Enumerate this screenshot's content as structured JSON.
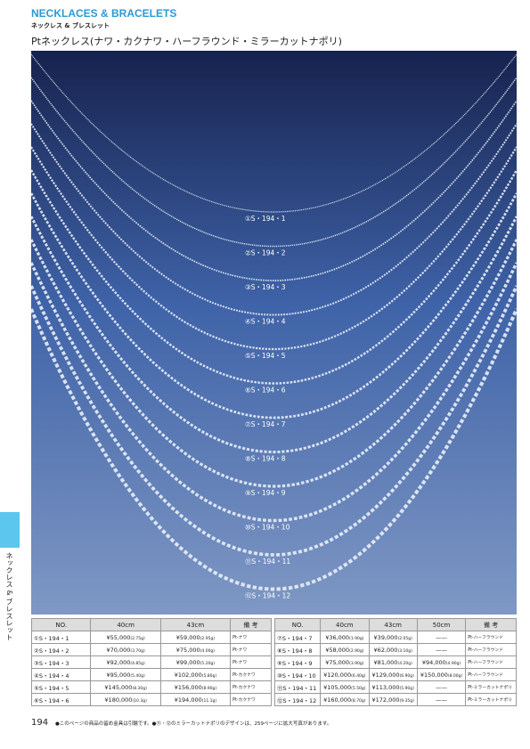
{
  "header": {
    "title": "NECKLACES & BRACELETS",
    "subtitle": "ネックレス & ブレスレット"
  },
  "title": "Ptネックレス(ナワ・カクナワ・ハーフラウンド・ミラーカットナポリ)",
  "photo": {
    "labels": [
      "①S・194・1",
      "②S・194・2",
      "③S・194・3",
      "④S・194・4",
      "⑤S・194・5",
      "⑥S・194・6",
      "⑦S・194・7",
      "⑧S・194・8",
      "⑨S・194・9",
      "⑩S・194・10",
      "⑪S・194・11",
      "⑫S・194・12"
    ]
  },
  "side_tab": "ネックレス & ブレスレット",
  "tables": [
    {
      "headers": [
        "NO.",
        "40cm",
        "43cm",
        "備 考"
      ],
      "rows": [
        {
          "no": "①S・194・1",
          "p40": "¥55,000",
          "w40": "(2.75g)",
          "p43": "¥59,000",
          "w43": "(2.95g)",
          "note": "Pt-ナワ"
        },
        {
          "no": "②S・194・2",
          "p40": "¥70,000",
          "w40": "(3.70g)",
          "p43": "¥75,000",
          "w43": "(4.00g)",
          "note": "Pt-ナワ"
        },
        {
          "no": "③S・194・3",
          "p40": "¥92,000",
          "w40": "(4.85g)",
          "p43": "¥99,000",
          "w43": "(5.20g)",
          "note": "Pt-ナワ"
        },
        {
          "no": "④S・194・4",
          "p40": "¥95,000",
          "w40": "(5.40g)",
          "p43": "¥102,000",
          "w43": "(5.80g)",
          "note": "Pt-カクナワ"
        },
        {
          "no": "⑤S・194・5",
          "p40": "¥145,000",
          "w40": "(8.30g)",
          "p43": "¥156,000",
          "w43": "(8.90g)",
          "note": "Pt-カクナワ"
        },
        {
          "no": "⑥S・194・6",
          "p40": "¥180,000",
          "w40": "(10.3g)",
          "p43": "¥194,000",
          "w43": "(11.1g)",
          "note": "Pt-カクナワ"
        }
      ]
    },
    {
      "headers": [
        "NO.",
        "40cm",
        "43cm",
        "50cm",
        "備 考"
      ],
      "rows": [
        {
          "no": "⑦S・194・7",
          "p40": "¥36,000",
          "w40": "(1.90g)",
          "p43": "¥39,000",
          "w43": "(2.05g)",
          "p50": "——",
          "note": "Pt-ハーフラウンド"
        },
        {
          "no": "⑧S・194・8",
          "p40": "¥58,000",
          "w40": "(2.90g)",
          "p43": "¥62,000",
          "w43": "(3.10g)",
          "p50": "——",
          "note": "Pt-ハーフラウンド"
        },
        {
          "no": "⑨S・194・9",
          "p40": "¥75,000",
          "w40": "(3.90g)",
          "p43": "¥81,000",
          "w43": "(4.20g)",
          "p50": "¥94,000",
          "w50": "(4.90g)",
          "note": "Pt-ハーフラウンド"
        },
        {
          "no": "⑩S・194・10",
          "p40": "¥120,000",
          "w40": "(6.40g)",
          "p43": "¥129,000",
          "w43": "(6.90g)",
          "p50": "¥150,000",
          "w50": "(8.00g)",
          "note": "Pt-ハーフラウンド"
        },
        {
          "no": "⑪S・194・11",
          "p40": "¥105,000",
          "w40": "(5.50g)",
          "p43": "¥113,000",
          "w43": "(5.90g)",
          "p50": "——",
          "note": "Pt-ミラーカットナポリ"
        },
        {
          "no": "⑫S・194・12",
          "p40": "¥160,000",
          "w40": "(8.70g)",
          "p43": "¥172,000",
          "w43": "(9.35g)",
          "p50": "——",
          "note": "Pt-ミラーカットナポリ"
        }
      ]
    }
  ],
  "footer": {
    "page": "194",
    "note": "●このページの商品の留め金具は引輪です。●⑪・⑫のミラーカットナポリのデザインは、259ページに拡大写真があります。"
  }
}
